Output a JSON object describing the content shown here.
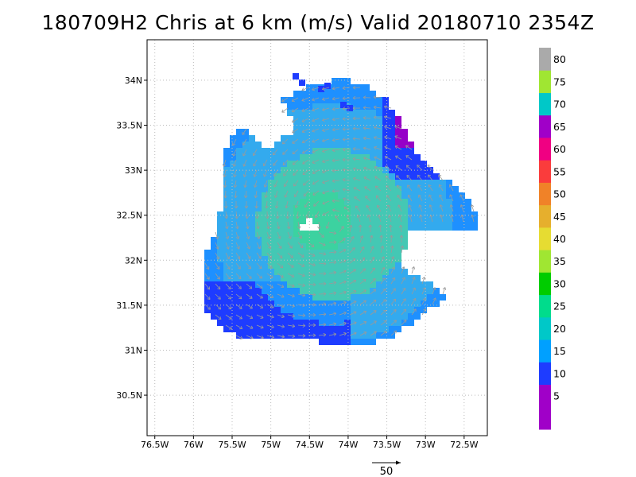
{
  "title": "180709H2 Chris at 6 km (m/s) Valid 20180710 2354Z",
  "map": {
    "lon_range": [
      -76.6,
      -72.2
    ],
    "lat_range": [
      30.05,
      34.45
    ],
    "lon_ticks": [
      {
        "v": -76.5,
        "label": "76.5W"
      },
      {
        "v": -76,
        "label": "76W"
      },
      {
        "v": -75.5,
        "label": "75.5W"
      },
      {
        "v": -75,
        "label": "75W"
      },
      {
        "v": -74.5,
        "label": "74.5W"
      },
      {
        "v": -74,
        "label": "74W"
      },
      {
        "v": -73.5,
        "label": "73.5W"
      },
      {
        "v": -73,
        "label": "73W"
      },
      {
        "v": -72.5,
        "label": "72.5W"
      }
    ],
    "lat_ticks": [
      {
        "v": 30.5,
        "label": "30.5N"
      },
      {
        "v": 31,
        "label": "31N"
      },
      {
        "v": 31.5,
        "label": "31.5N"
      },
      {
        "v": 32,
        "label": "32N"
      },
      {
        "v": 32.5,
        "label": "32.5N"
      },
      {
        "v": 33,
        "label": "33N"
      },
      {
        "v": 33.5,
        "label": "33.5N"
      },
      {
        "v": 34,
        "label": "34N"
      }
    ],
    "center": {
      "lon": -74.2,
      "lat": 32.4
    }
  },
  "colorbar": {
    "levels": [
      {
        "label": "",
        "color": "#a000c8"
      },
      {
        "label": "5",
        "color": "#a000c8"
      },
      {
        "label": "10",
        "color": "#1e3cff"
      },
      {
        "label": "15",
        "color": "#00a0ff"
      },
      {
        "label": "20",
        "color": "#00c8c8"
      },
      {
        "label": "25",
        "color": "#00dc8c"
      },
      {
        "label": "30",
        "color": "#00cc00"
      },
      {
        "label": "35",
        "color": "#a0e632"
      },
      {
        "label": "40",
        "color": "#e6dc32"
      },
      {
        "label": "45",
        "color": "#e6af2d"
      },
      {
        "label": "50",
        "color": "#f08228"
      },
      {
        "label": "55",
        "color": "#fa3c3c"
      },
      {
        "label": "60",
        "color": "#f00082"
      },
      {
        "label": "65",
        "color": "#a000c8"
      },
      {
        "label": "70",
        "color": "#00c8c8"
      },
      {
        "label": "75",
        "color": "#a0e632"
      },
      {
        "label": "80",
        "color": "#aaaaaa"
      }
    ],
    "palette": {
      "v10": "#1e3cff",
      "v15": "#1e90ff",
      "v20": "#33aaee",
      "v25": "#44c8b4",
      "v30": "#3cd2a0",
      "v10_purple": "#9600c8"
    }
  },
  "reference_vector": {
    "label": "50"
  },
  "grid_color": "#bbbbbb"
}
